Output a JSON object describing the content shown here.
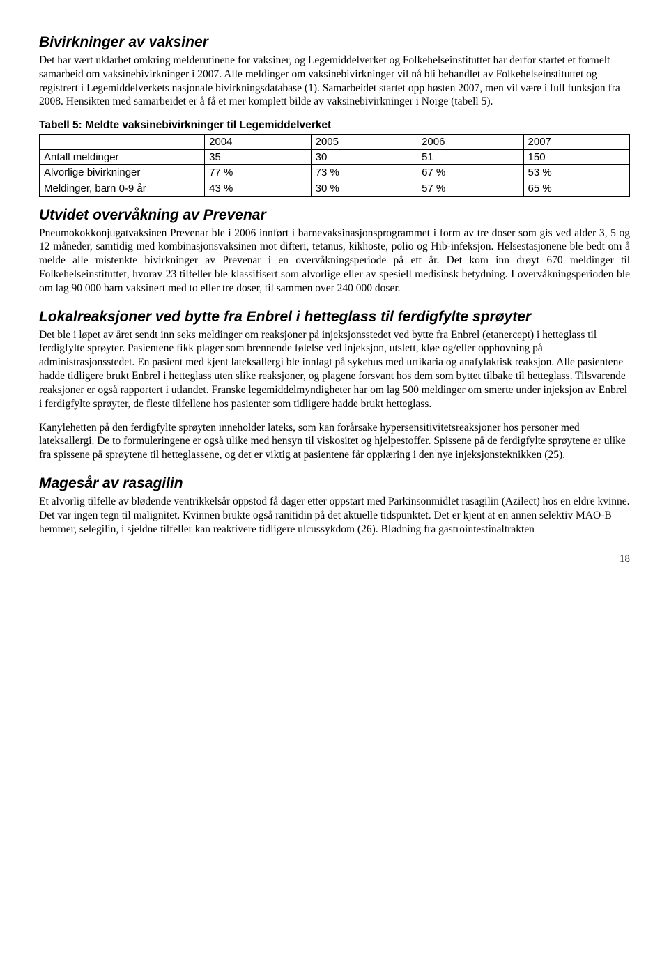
{
  "sections": {
    "vaccine_side_effects": {
      "title": "Bivirkninger av vaksiner",
      "body": "Det har vært uklarhet omkring melderutinene for vaksiner, og Legemiddelverket og Folkehelseinstituttet har derfor startet et formelt samarbeid om vaksinebivirkninger i 2007. Alle meldinger om vaksinebivirkninger vil nå bli behandlet av Folkehelseinstituttet og registrert i Legemiddelverkets nasjonale bivirkningsdatabase (1). Samarbeidet startet opp høsten 2007, men vil være i full funksjon fra 2008. Hensikten med samarbeidet er å få et mer komplett bilde av vaksinebivirkninger i Norge (tabell 5)."
    },
    "prevenar": {
      "title": "Utvidet overvåkning av Prevenar",
      "body": "Pneumokokkonjugatvaksinen Prevenar ble i 2006 innført i barnevaksinasjonsprogrammet i form av tre doser som gis ved alder 3, 5 og 12 måneder, samtidig med kombinasjonsvaksinen mot difteri, tetanus, kikhoste, polio og Hib-infeksjon. Helsestasjonene ble bedt om å melde alle mistenkte bivirkninger av Prevenar i en overvåkningsperiode på ett år. Det kom inn drøyt 670 meldinger til Folkehelseinstituttet, hvorav 23 tilfeller ble klassifisert som alvorlige eller av spesiell medisinsk betydning. I overvåkningsperioden ble om lag 90 000 barn vaksinert med to eller tre doser, til sammen over 240 000 doser."
    },
    "enbrel": {
      "title": "Lokalreaksjoner ved bytte fra Enbrel i hetteglass til ferdigfylte sprøyter",
      "body1": "Det ble i løpet av året sendt inn seks meldinger om reaksjoner på injeksjonsstedet ved bytte fra Enbrel (etanercept) i hetteglass til ferdigfylte sprøyter. Pasientene fikk plager som brennende følelse ved injeksjon, utslett, kløe og/eller opphovning på administrasjonsstedet. En pasient med kjent lateksallergi ble innlagt på sykehus med urtikaria og anafylaktisk reaksjon. Alle pasientene hadde tidligere brukt Enbrel i hetteglass uten slike reaksjoner, og plagene forsvant hos dem som byttet tilbake til hetteglass. Tilsvarende reaksjoner er også rapportert i utlandet. Franske legemiddelmyndigheter har om lag 500 meldinger om smerte under injeksjon av Enbrel i ferdigfylte sprøyter, de fleste tilfellene hos pasienter som tidligere hadde brukt hetteglass.",
      "body2": "Kanylehetten på den ferdigfylte sprøyten inneholder lateks, som kan forårsake hypersensitivitetsreaksjoner hos personer med lateksallergi. De to formuleringene er også ulike med hensyn til viskositet og hjelpestoffer. Spissene på de ferdigfylte sprøytene er ulike fra spissene på sprøytene til hetteglassene, og det er viktig at pasientene får opplæring i den nye injeksjonsteknikken (25)."
    },
    "rasagilin": {
      "title": "Magesår av rasagilin",
      "body": "Et alvorlig tilfelle av blødende ventrikkelsår oppstod få dager etter oppstart med Parkinsonmidlet rasagilin (Azilect) hos en eldre kvinne. Det var ingen tegn til malignitet. Kvinnen brukte også ranitidin på det aktuelle tidspunktet. Det er kjent at en annen selektiv MAO-B hemmer, selegilin, i sjeldne tilfeller kan reaktivere tidligere ulcussykdom (26). Blødning fra gastrointestinaltrakten"
    }
  },
  "table5": {
    "caption": "Tabell 5: Meldte vaksinebivirkninger til Legemiddelverket",
    "columns": [
      "2004",
      "2005",
      "2006",
      "2007"
    ],
    "rows": [
      {
        "label": "Antall meldinger",
        "cells": [
          "35",
          "30",
          "51",
          "150"
        ]
      },
      {
        "label": "Alvorlige bivirkninger",
        "cells": [
          "77 %",
          "73 %",
          "67 %",
          "53 %"
        ]
      },
      {
        "label": "Meldinger, barn 0-9 år",
        "cells": [
          "43 %",
          "30 %",
          "57 %",
          "65 %"
        ]
      }
    ]
  },
  "page_number": "18"
}
